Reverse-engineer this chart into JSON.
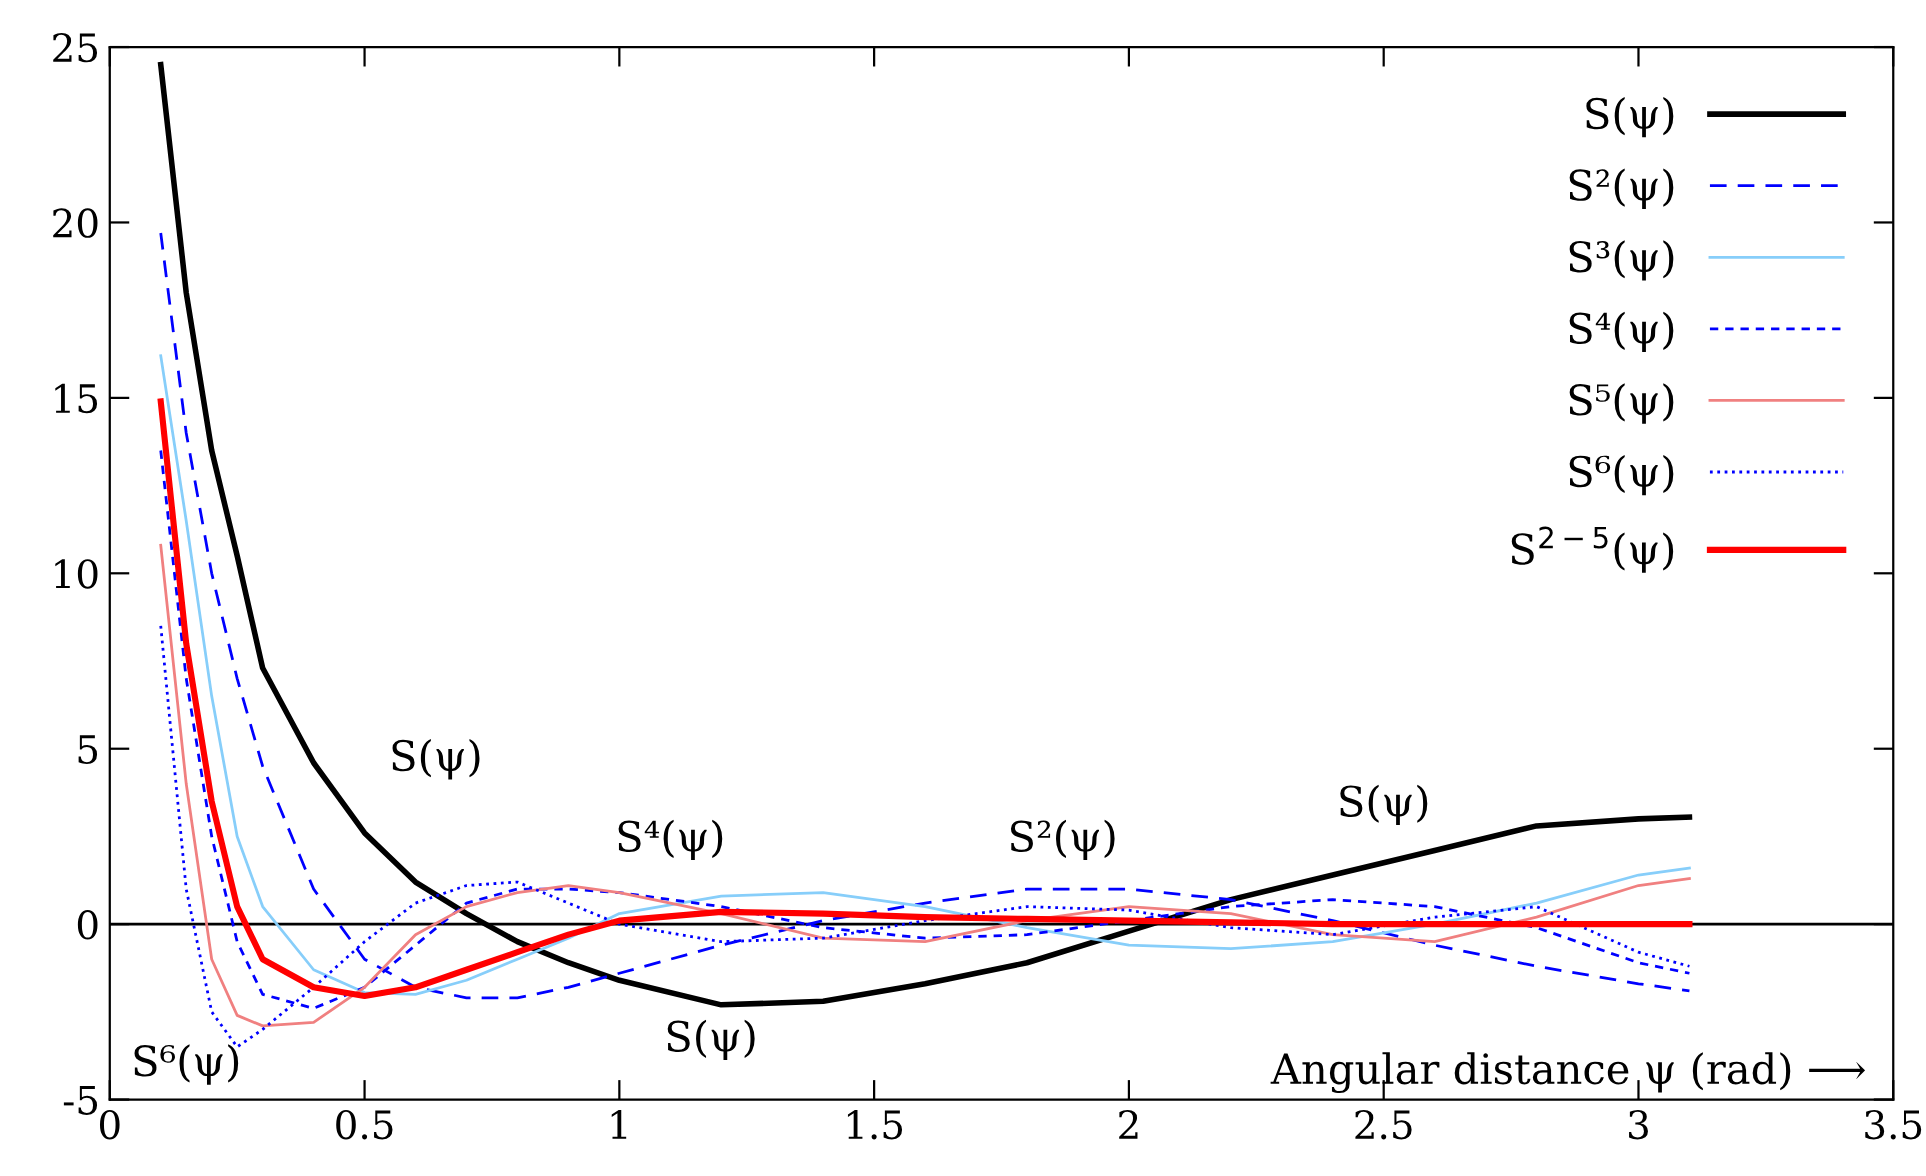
{
  "chart_data": {
    "type": "line",
    "xlabel": "Angular distance ψ (rad) ⟶",
    "x": [
      0.1,
      0.15,
      0.2,
      0.25,
      0.3,
      0.4,
      0.5,
      0.6,
      0.7,
      0.8,
      0.9,
      1.0,
      1.2,
      1.4,
      1.6,
      1.8,
      2.0,
      2.2,
      2.4,
      2.6,
      2.8,
      3.0,
      3.1
    ],
    "series": [
      {
        "name": "S(ψ)",
        "color": "#000000",
        "line_style": "solid",
        "values": [
          24.5,
          18,
          13.5,
          10.5,
          7.3,
          4.6,
          2.6,
          1.2,
          0.3,
          -0.5,
          -1.1,
          -1.6,
          -2.3,
          -2.2,
          -1.7,
          -1.1,
          -0.2,
          0.7,
          1.4,
          2.1,
          2.8,
          3.0,
          3.05
        ]
      },
      {
        "name": "S²(ψ)",
        "color": "#0000ff",
        "line_style": "dashed",
        "values": [
          19.7,
          14,
          10,
          7,
          4.5,
          1,
          -1,
          -1.8,
          -2.1,
          -2.1,
          -1.8,
          -1.4,
          -0.6,
          0.1,
          0.6,
          1.0,
          1.0,
          0.7,
          0.1,
          -0.6,
          -1.2,
          -1.7,
          -1.9
        ]
      },
      {
        "name": "S³(ψ)",
        "color": "#87cefa",
        "line_style": "solid",
        "values": [
          16.2,
          11.5,
          6.5,
          2.5,
          0.5,
          -1.3,
          -1.95,
          -2.0,
          -1.6,
          -1.0,
          -0.4,
          0.3,
          0.8,
          0.9,
          0.5,
          -0.1,
          -0.6,
          -0.7,
          -0.5,
          0.0,
          0.6,
          1.4,
          1.6
        ]
      },
      {
        "name": "S⁴(ψ)",
        "color": "#0000ff",
        "line_style": "dashed",
        "values": [
          13.5,
          7,
          2.5,
          -0.5,
          -2,
          -2.4,
          -1.8,
          -0.6,
          0.6,
          1.0,
          1.0,
          0.9,
          0.5,
          -0.1,
          -0.4,
          -0.3,
          0.1,
          0.5,
          0.7,
          0.5,
          -0.1,
          -1.1,
          -1.4
        ]
      },
      {
        "name": "S⁵(ψ)",
        "color": "#f08080",
        "line_style": "solid",
        "values": [
          10.8,
          4,
          -1.0,
          -2.6,
          -2.9,
          -2.8,
          -1.8,
          -0.3,
          0.5,
          0.9,
          1.1,
          0.9,
          0.3,
          -0.4,
          -0.5,
          0.1,
          0.5,
          0.3,
          -0.3,
          -0.5,
          0.2,
          1.1,
          1.3
        ]
      },
      {
        "name": "S⁶(ψ)",
        "color": "#0000ff",
        "line_style": "dotted",
        "values": [
          8.5,
          1,
          -2.5,
          -3.5,
          -3.0,
          -1.8,
          -0.5,
          0.6,
          1.1,
          1.2,
          0.6,
          0.0,
          -0.5,
          -0.4,
          0.1,
          0.5,
          0.4,
          -0.1,
          -0.3,
          0.2,
          0.5,
          -0.8,
          -1.2
        ]
      },
      {
        "name": "S$^{2−5}$(ψ)",
        "color": "#ff0000",
        "line_style": "solid",
        "values": [
          14.9,
          8.0,
          3.5,
          0.5,
          -1.0,
          -1.8,
          -2.05,
          -1.8,
          -1.3,
          -0.8,
          -0.3,
          0.1,
          0.35,
          0.3,
          0.2,
          0.15,
          0.1,
          0.05,
          0.0,
          0.0,
          0.0,
          0.0,
          0.0
        ]
      }
    ],
    "annotations": [
      "S(ψ)",
      "S⁴(ψ)",
      "S²(ψ)",
      "S(ψ)",
      "S(ψ)",
      "S⁶(ψ)"
    ],
    "ref_lines": [
      {
        "axis": "y",
        "value": 0,
        "color": "#000000"
      }
    ],
    "xlim": [
      0,
      3.5
    ],
    "ylim": [
      -5,
      25
    ],
    "xticks": [
      0,
      0.5,
      1,
      1.5,
      2,
      2.5,
      3,
      3.5
    ],
    "yticks": [
      -5,
      0,
      5,
      10,
      15,
      20,
      25
    ],
    "grid": false,
    "legend": "top right",
    "marker": "none"
  }
}
